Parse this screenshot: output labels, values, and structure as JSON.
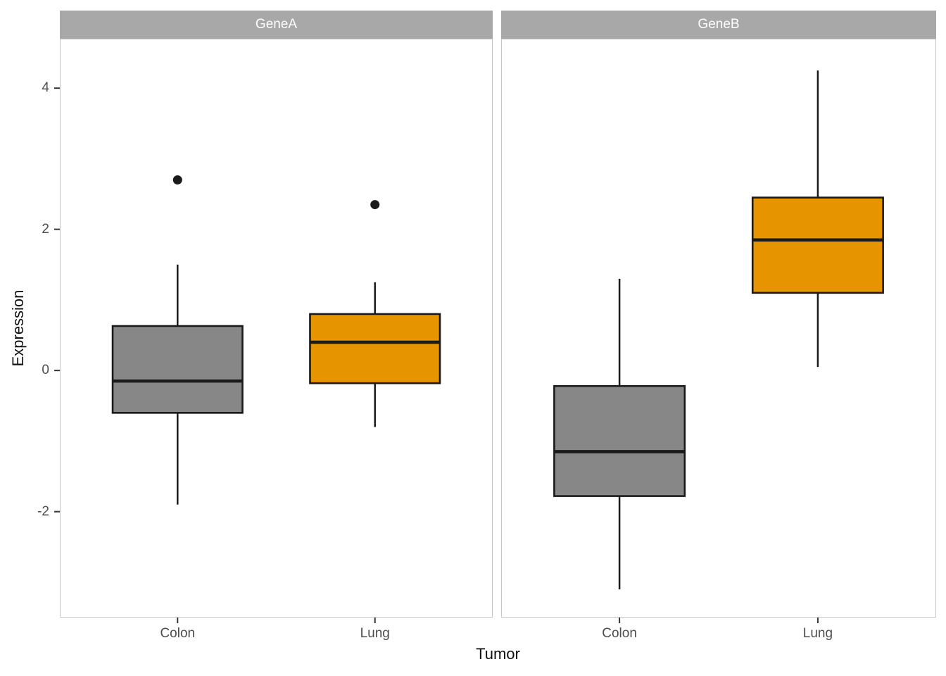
{
  "chart_data": {
    "type": "boxplot",
    "title": "",
    "xlabel": "Tumor",
    "ylabel": "Expression",
    "ylim": [
      -3.5,
      4.7
    ],
    "yticks": [
      -2,
      0,
      2,
      4
    ],
    "categories": [
      "Colon",
      "Lung"
    ],
    "legend_position": "none",
    "grid": "off",
    "facets": [
      {
        "label": "GeneA",
        "boxes": [
          {
            "category": "Colon",
            "fill": "#878787",
            "whisker_low": -1.9,
            "q1": -0.6,
            "median": -0.15,
            "q3": 0.63,
            "whisker_high": 1.5,
            "outliers": [
              2.7
            ]
          },
          {
            "category": "Lung",
            "fill": "#E69500",
            "whisker_low": -0.8,
            "q1": -0.18,
            "median": 0.4,
            "q3": 0.8,
            "whisker_high": 1.25,
            "outliers": [
              2.35
            ]
          }
        ]
      },
      {
        "label": "GeneB",
        "boxes": [
          {
            "category": "Colon",
            "fill": "#878787",
            "whisker_low": -3.1,
            "q1": -1.78,
            "median": -1.15,
            "q3": -0.22,
            "whisker_high": 1.3,
            "outliers": []
          },
          {
            "category": "Lung",
            "fill": "#E69500",
            "whisker_low": 0.05,
            "q1": 1.1,
            "median": 1.85,
            "q3": 2.45,
            "whisker_high": 4.25,
            "outliers": []
          }
        ]
      }
    ],
    "style": {
      "gray_fill": "#878787",
      "orange_fill": "#E69500",
      "strip_bg": "#A8A8A8",
      "strip_text_color": "#FFFFFF",
      "panel_border": "#C6C6C6",
      "box_stroke": "#1A1A1A",
      "outlier_color": "#1A1A1A",
      "tick_color": "#333333",
      "tick_label_color": "#4D4D4D"
    }
  }
}
